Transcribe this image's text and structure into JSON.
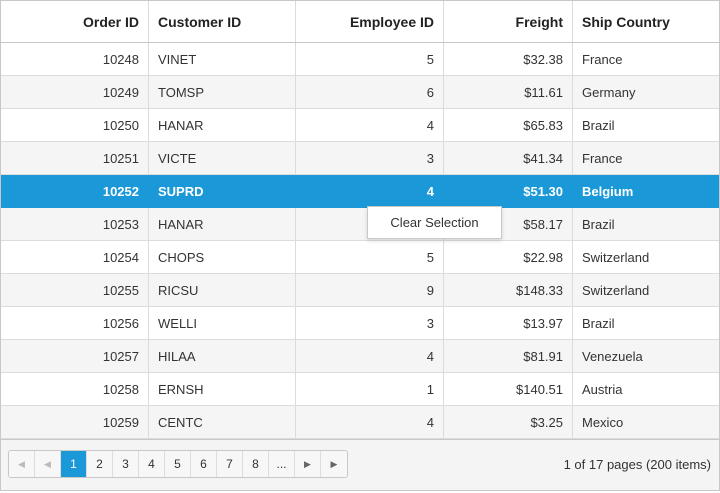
{
  "columns": [
    "Order ID",
    "Customer ID",
    "Employee ID",
    "Freight",
    "Ship Country"
  ],
  "rows": [
    [
      "10248",
      "VINET",
      "5",
      "$32.38",
      "France"
    ],
    [
      "10249",
      "TOMSP",
      "6",
      "$11.61",
      "Germany"
    ],
    [
      "10250",
      "HANAR",
      "4",
      "$65.83",
      "Brazil"
    ],
    [
      "10251",
      "VICTE",
      "3",
      "$41.34",
      "France"
    ],
    [
      "10252",
      "SUPRD",
      "4",
      "$51.30",
      "Belgium"
    ],
    [
      "10253",
      "HANAR",
      "",
      "$58.17",
      "Brazil"
    ],
    [
      "10254",
      "CHOPS",
      "5",
      "$22.98",
      "Switzerland"
    ],
    [
      "10255",
      "RICSU",
      "9",
      "$148.33",
      "Switzerland"
    ],
    [
      "10256",
      "WELLI",
      "3",
      "$13.97",
      "Brazil"
    ],
    [
      "10257",
      "HILAA",
      "4",
      "$81.91",
      "Venezuela"
    ],
    [
      "10258",
      "ERNSH",
      "1",
      "$140.51",
      "Austria"
    ],
    [
      "10259",
      "CENTC",
      "4",
      "$3.25",
      "Mexico"
    ]
  ],
  "selected_row_index": 4,
  "context_menu": {
    "item_label": "Clear Selection"
  },
  "pager": {
    "first_icon": "first-page-icon",
    "prev_icon": "previous-page-icon",
    "pages": [
      "1",
      "2",
      "3",
      "4",
      "5",
      "6",
      "7",
      "8",
      "..."
    ],
    "active_page": "1",
    "next_icon": "next-page-icon",
    "last_icon": "last-page-icon",
    "info": "1 of 17 pages (200 items)"
  },
  "colors": {
    "selection": "#1a98d8",
    "alt_row": "#f5f5f5",
    "border": "#c8c8c8"
  }
}
